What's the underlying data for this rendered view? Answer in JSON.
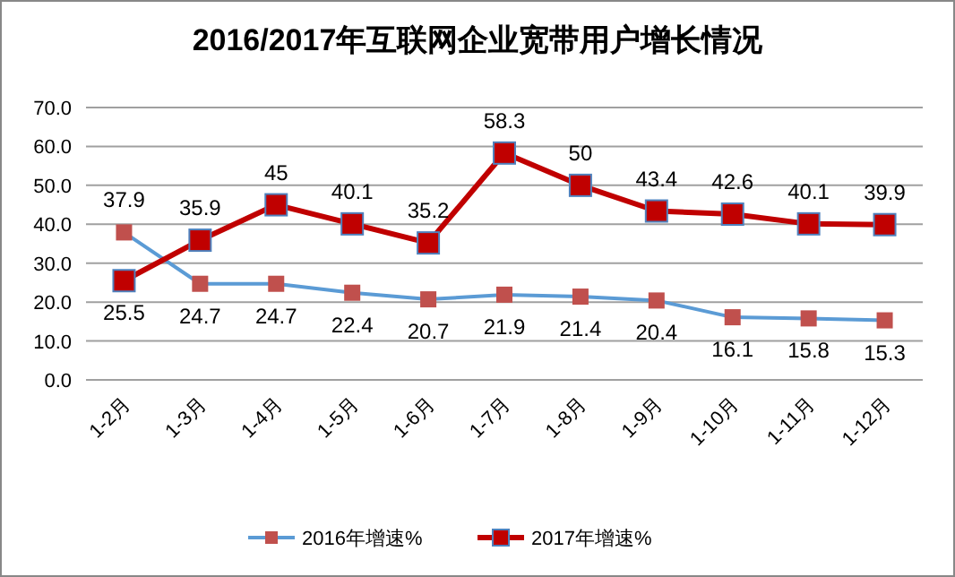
{
  "chart_data": {
    "type": "line",
    "title": "2016/2017年互联网企业宽带用户增长情况",
    "categories": [
      "1-2月",
      "1-3月",
      "1-4月",
      "1-5月",
      "1-6月",
      "1-7月",
      "1-8月",
      "1-9月",
      "1-10月",
      "1-11月",
      "1-12月"
    ],
    "series": [
      {
        "name": "2016年增速%",
        "color": "#5b9bd5",
        "colors": [
          "#c0504d",
          "#c0504d",
          "#c0504d",
          "#c0504d",
          "#c0504d",
          "#c0504d",
          "#c0504d",
          "#c0504d",
          "#c0504d",
          "#c0504d",
          "#c0504d"
        ],
        "values": [
          37.9,
          24.7,
          24.7,
          22.4,
          20.7,
          21.9,
          21.4,
          20.4,
          16.1,
          15.8,
          15.3
        ]
      },
      {
        "name": "2017年增速%",
        "color": "#c00000",
        "colors": [
          "#c00000",
          "#c00000",
          "#c00000",
          "#c00000",
          "#c00000",
          "#c00000",
          "#c00000",
          "#c00000",
          "#c00000",
          "#c00000",
          "#c00000"
        ],
        "values": [
          25.5,
          35.9,
          45,
          40.1,
          35.2,
          58.3,
          50,
          43.4,
          42.6,
          40.1,
          39.9
        ]
      }
    ],
    "ylim": [
      0,
      70
    ],
    "yticks": [
      {
        "value": 0,
        "label": "0.0"
      },
      {
        "value": 10,
        "label": "10.0"
      },
      {
        "value": 20,
        "label": "20.0"
      },
      {
        "value": 30,
        "label": "30.0"
      },
      {
        "value": 40,
        "label": "40.0"
      },
      {
        "value": 50,
        "label": "50.0"
      },
      {
        "value": 60,
        "label": "60.0"
      },
      {
        "value": 70,
        "label": "70.0"
      }
    ],
    "grid": "y",
    "legend": "bottom",
    "marker": "square",
    "data_labels": true
  }
}
